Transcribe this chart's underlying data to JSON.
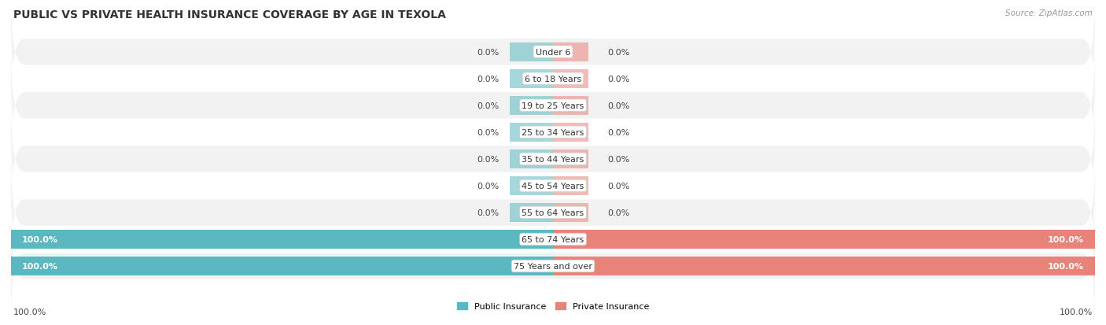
{
  "title": "PUBLIC VS PRIVATE HEALTH INSURANCE COVERAGE BY AGE IN TEXOLA",
  "source": "Source: ZipAtlas.com",
  "categories": [
    "Under 6",
    "6 to 18 Years",
    "19 to 25 Years",
    "25 to 34 Years",
    "35 to 44 Years",
    "45 to 54 Years",
    "55 to 64 Years",
    "65 to 74 Years",
    "75 Years and over"
  ],
  "public_values": [
    0.0,
    0.0,
    0.0,
    0.0,
    0.0,
    0.0,
    0.0,
    100.0,
    100.0
  ],
  "private_values": [
    0.0,
    0.0,
    0.0,
    0.0,
    0.0,
    0.0,
    0.0,
    100.0,
    100.0
  ],
  "public_color": "#5BB8C1",
  "private_color": "#E8837A",
  "fig_bg_color": "#FFFFFF",
  "row_colors": [
    "#F2F2F2",
    "#FFFFFF",
    "#F2F2F2",
    "#FFFFFF",
    "#F2F2F2",
    "#FFFFFF",
    "#F2F2F2",
    "#FFFFFF",
    "#F2F2F2"
  ],
  "bar_bg_color": "#DCDCDC",
  "bar_height": 0.7,
  "max_value": 100.0,
  "title_fontsize": 10,
  "label_fontsize": 8,
  "source_fontsize": 7.5,
  "legend_fontsize": 8,
  "cat_label_fontsize": 8
}
